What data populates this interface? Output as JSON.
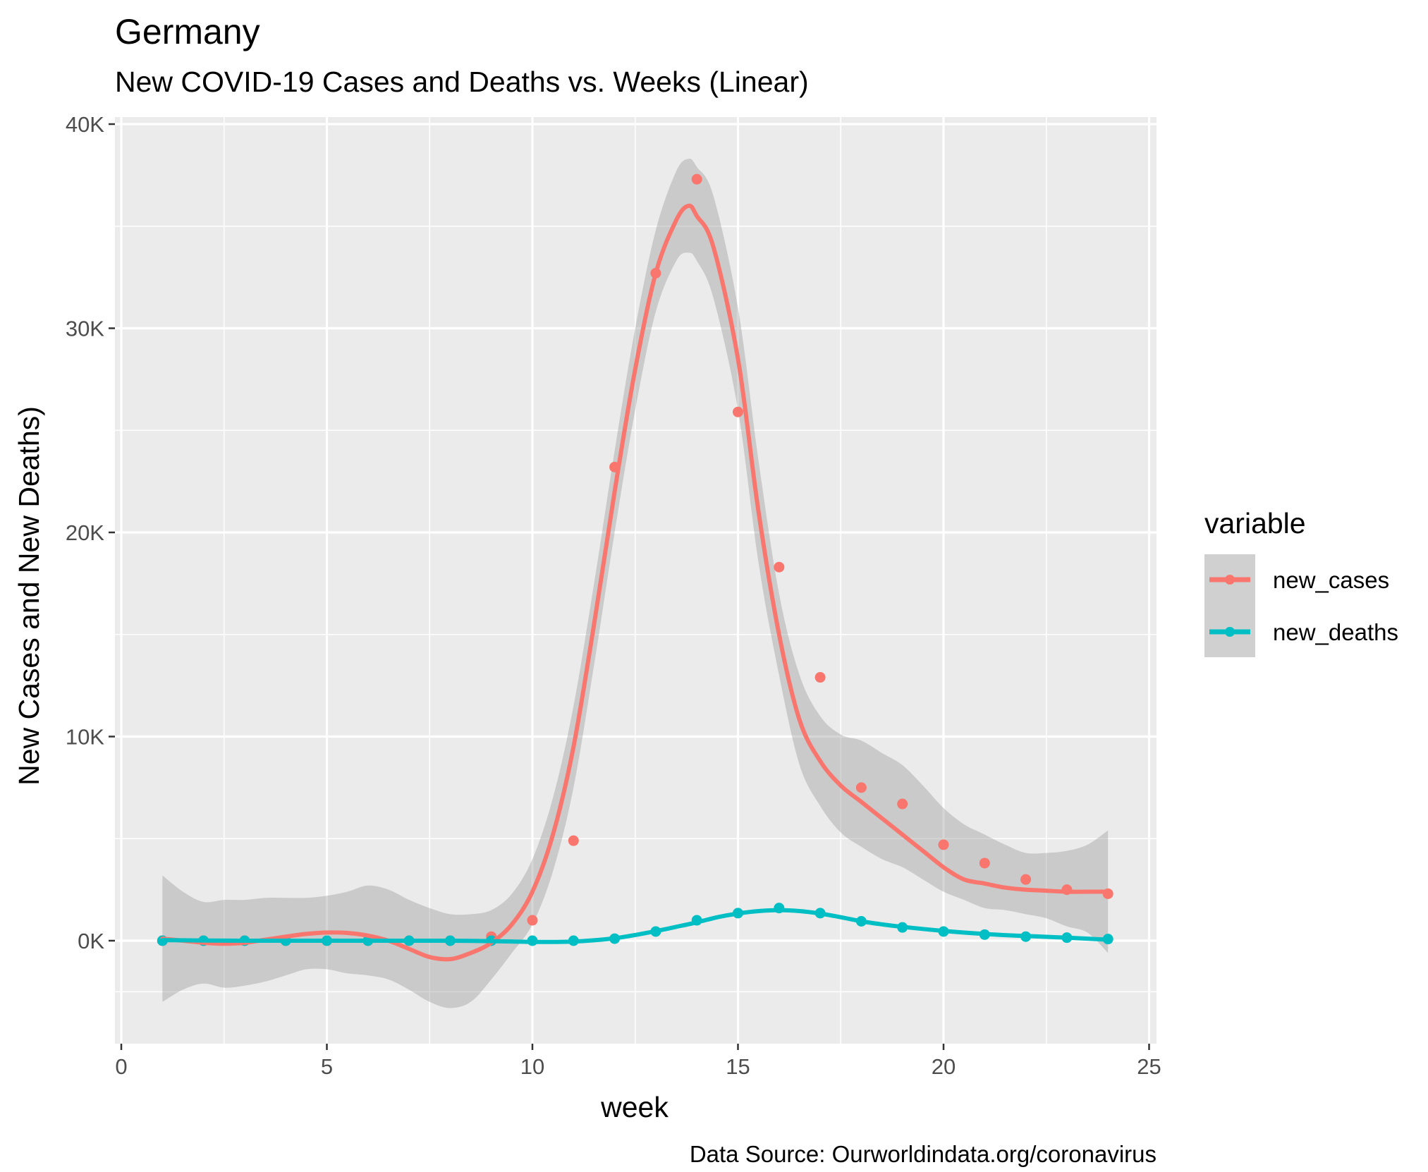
{
  "chart_data": {
    "type": "line",
    "title": "Germany",
    "subtitle": "New COVID-19 Cases and Deaths vs. Weeks (Linear)",
    "xlabel": "week",
    "ylabel": "New Cases and New Deaths)",
    "caption": "Data Source: Ourworldindata.org/coronavirus",
    "xlim": [
      -0.1,
      25.2
    ],
    "ylim": [
      -5000,
      40000
    ],
    "x_ticks": [
      0,
      5,
      10,
      15,
      20,
      25
    ],
    "x_tick_labels": [
      "0",
      "5",
      "10",
      "15",
      "20",
      "25"
    ],
    "y_ticks": [
      0,
      10000,
      20000,
      30000,
      40000
    ],
    "y_tick_labels": [
      "0K",
      "10K",
      "20K",
      "30K",
      "40K"
    ],
    "grid": true,
    "legend": {
      "title": "variable",
      "position": "right"
    },
    "series": [
      {
        "name": "new_cases",
        "color": "#F8766D",
        "points": {
          "x": [
            1,
            2,
            3,
            4,
            5,
            6,
            7,
            8,
            9,
            10,
            11,
            12,
            13,
            14,
            15,
            16,
            17,
            18,
            19,
            20,
            21,
            22,
            23,
            24
          ],
          "y": [
            0,
            0,
            0,
            0,
            0,
            0,
            0,
            0,
            200,
            1000,
            4900,
            23200,
            32700,
            37300,
            25900,
            18300,
            12900,
            7500,
            6700,
            4700,
            3800,
            3000,
            2500,
            2300
          ]
        },
        "smooth": {
          "x": [
            1,
            1.5,
            2,
            2.5,
            3,
            3.5,
            4,
            4.5,
            5,
            5.5,
            6,
            6.5,
            7,
            7.5,
            8,
            8.5,
            9,
            9.5,
            10,
            10.5,
            11,
            11.5,
            12,
            12.5,
            13,
            13.5,
            13.8,
            14,
            14.4,
            15,
            15.5,
            16,
            16.5,
            17,
            17.5,
            18,
            18.5,
            19,
            19.5,
            20,
            20.5,
            21,
            21.5,
            22,
            22.5,
            23,
            23.5,
            24
          ],
          "y": [
            100,
            0,
            -100,
            -150,
            -100,
            50,
            200,
            330,
            400,
            380,
            250,
            0,
            -400,
            -800,
            -900,
            -600,
            -100,
            800,
            2400,
            5200,
            9500,
            15500,
            22000,
            28000,
            32700,
            35300,
            36000,
            35500,
            34000,
            28500,
            21000,
            15000,
            10800,
            8800,
            7600,
            6800,
            6000,
            5200,
            4400,
            3600,
            3000,
            2800,
            2600,
            2500,
            2450,
            2400,
            2400,
            2400
          ]
        },
        "band_upper": [
          3200,
          2400,
          1900,
          2000,
          2000,
          2100,
          2100,
          2100,
          2200,
          2400,
          2700,
          2500,
          2000,
          1600,
          1300,
          1300,
          1500,
          2300,
          4000,
          7000,
          11500,
          17500,
          24000,
          30000,
          34800,
          37700,
          38300,
          37900,
          36500,
          31000,
          23500,
          17000,
          13000,
          11000,
          10100,
          9800,
          9200,
          8600,
          7600,
          6500,
          5700,
          5200,
          4700,
          4300,
          4300,
          4400,
          4700,
          5400
        ],
        "band_lower": [
          -3000,
          -2400,
          -2100,
          -2300,
          -2200,
          -2000,
          -1700,
          -1400,
          -1400,
          -1600,
          -1700,
          -1900,
          -2400,
          -3000,
          -3300,
          -3000,
          -1900,
          -600,
          800,
          3400,
          7500,
          13500,
          20000,
          26000,
          30800,
          33300,
          33700,
          33300,
          31500,
          26000,
          18500,
          13000,
          8600,
          6600,
          5300,
          4600,
          4000,
          3600,
          3000,
          2400,
          2000,
          1600,
          1500,
          1300,
          1100,
          700,
          400,
          -600
        ]
      },
      {
        "name": "new_deaths",
        "color": "#00BFC4",
        "points": {
          "x": [
            1,
            2,
            3,
            4,
            5,
            6,
            7,
            8,
            9,
            10,
            11,
            12,
            13,
            14,
            15,
            16,
            17,
            18,
            19,
            20,
            21,
            22,
            23,
            24
          ],
          "y": [
            0,
            0,
            0,
            0,
            0,
            0,
            0,
            0,
            0,
            0,
            0,
            100,
            450,
            1000,
            1350,
            1600,
            1350,
            950,
            650,
            450,
            300,
            200,
            150,
            80
          ]
        },
        "smooth": {
          "x": [
            1,
            2,
            3,
            4,
            5,
            6,
            7,
            8,
            9,
            10,
            10.5,
            11,
            11.5,
            12,
            12.5,
            13,
            13.5,
            14,
            14.5,
            15,
            15.5,
            16,
            16.5,
            17,
            17.5,
            18,
            18.5,
            19,
            20,
            21,
            22,
            23,
            24
          ],
          "y": [
            30,
            10,
            0,
            0,
            0,
            0,
            0,
            0,
            -20,
            -60,
            -60,
            -40,
            20,
            120,
            280,
            470,
            680,
            900,
            1150,
            1330,
            1450,
            1500,
            1450,
            1330,
            1150,
            950,
            800,
            680,
            480,
            330,
            230,
            150,
            50
          ]
        }
      }
    ]
  }
}
